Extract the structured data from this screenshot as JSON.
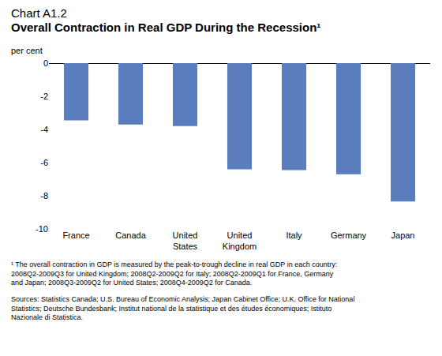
{
  "chart_data": {
    "type": "bar",
    "title": "Chart A1.2",
    "subtitle": "Overall Contraction in Real GDP During the Recession¹",
    "y_label": "per cent",
    "categories": [
      "France",
      "Canada",
      "United States",
      "United Kingdom",
      "Italy",
      "Germany",
      "Japan"
    ],
    "values": [
      -3.45,
      -3.7,
      -3.8,
      -6.4,
      -6.45,
      -6.7,
      -8.35
    ],
    "color": "#5a7dbd",
    "ylim": [
      -10,
      0
    ],
    "yticks": [
      -10,
      -8,
      -6,
      -4,
      -2,
      0
    ],
    "grid": false,
    "footnote": [
      "¹ The overall contraction in GDP is measured by the peak-to-trough decline in real GDP in each country:",
      "2008Q2-2009Q3 for United Kingdom; 2008Q2-2009Q2 for Italy; 2008Q2-2009Q1 for France, Germany",
      "and Japan; 2008Q3-2009Q2 for United States; 2008Q4-2009Q2 for Canada."
    ],
    "source": [
      "Sources: Statistics Canada; U.S. Bureau of Economic Analysis; Japan Cabinet Office; U.K. Office for National",
      "Statistics; Deutsche Bundesbank; Institut national de la statistique et des études économiques; Istituto",
      "Nazionale di Statistica."
    ]
  }
}
